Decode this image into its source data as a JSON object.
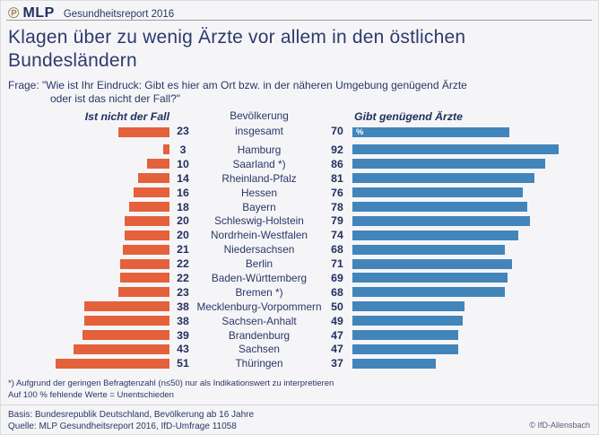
{
  "brand": {
    "logo_glyph": "℗",
    "name": "MLP",
    "report": "Gesundheitsreport 2016"
  },
  "title": "Klagen über zu wenig Ärzte vor allem in den östlichen Bundesländern",
  "question": {
    "line1": "Frage: \"Wie ist Ihr Eindruck: Gibt es hier am Ort bzw. in der näheren Umgebung genügend Ärzte",
    "line2": "oder ist das nicht der Fall?\""
  },
  "chart_data": {
    "type": "bar",
    "orientation": "horizontal-bidirectional",
    "left_header": "Ist nicht der Fall",
    "right_header": "Gibt genügend Ärzte",
    "unit": "%",
    "total_row": {
      "label_line1": "Bevölkerung",
      "label_line2": "insgesamt",
      "left": 23,
      "right": 70
    },
    "categories": [
      "Hamburg",
      "Saarland *)",
      "Rheinland-Pfalz",
      "Hessen",
      "Bayern",
      "Schleswig-Holstein",
      "Nordrhein-Westfalen",
      "Niedersachsen",
      "Berlin",
      "Baden-Württemberg",
      "Bremen *)",
      "Mecklenburg-Vorpommern",
      "Sachsen-Anhalt",
      "Brandenburg",
      "Sachsen",
      "Thüringen"
    ],
    "series": [
      {
        "name": "Ist nicht der Fall",
        "values": [
          3,
          10,
          14,
          16,
          18,
          20,
          20,
          21,
          22,
          22,
          23,
          38,
          38,
          39,
          43,
          51
        ]
      },
      {
        "name": "Gibt genügend Ärzte",
        "values": [
          92,
          86,
          81,
          76,
          78,
          79,
          74,
          68,
          71,
          69,
          68,
          50,
          49,
          47,
          47,
          37
        ]
      }
    ],
    "xlim": [
      0,
      100
    ],
    "grid": false,
    "legend_position": "column-headers",
    "colors": {
      "left": "#e4613c",
      "right": "#4285bb"
    }
  },
  "footnotes": {
    "line1": "*) Aufgrund der geringen Befragtenzahl (n≤50) nur als Indikationswert zu interpretieren",
    "line2": "Auf 100 % fehlende Werte = Unentschieden"
  },
  "source": {
    "basis": "Basis: Bundesrepublik Deutschland, Bevölkerung ab 16 Jahre",
    "quelle": "Quelle: MLP Gesundheitsreport 2016, IfD-Umfrage 11058",
    "copyright": "© IfD-Allensbach"
  }
}
